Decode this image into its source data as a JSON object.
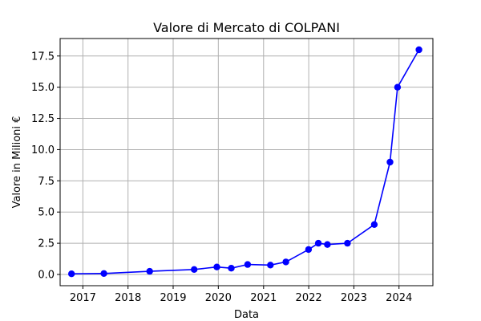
{
  "chart_data": {
    "type": "line",
    "title": "Valore di Mercato di COLPANI",
    "xlabel": "Data",
    "ylabel": "Valore in Milioni €",
    "x_axis_type": "date",
    "xlim": [
      "2016-07-01",
      "2024-10-01"
    ],
    "ylim": [
      -0.9,
      18.9
    ],
    "grid": true,
    "line_color": "#0000ff",
    "marker": "circle",
    "x_ticks": [
      {
        "date": "2017-01-01",
        "label": "2017"
      },
      {
        "date": "2018-01-01",
        "label": "2018"
      },
      {
        "date": "2019-01-01",
        "label": "2019"
      },
      {
        "date": "2020-01-01",
        "label": "2020"
      },
      {
        "date": "2021-01-01",
        "label": "2021"
      },
      {
        "date": "2022-01-01",
        "label": "2022"
      },
      {
        "date": "2023-01-01",
        "label": "2023"
      },
      {
        "date": "2024-01-01",
        "label": "2024"
      }
    ],
    "y_ticks": [
      {
        "value": 0.0,
        "label": "0.0"
      },
      {
        "value": 2.5,
        "label": "2.5"
      },
      {
        "value": 5.0,
        "label": "5.0"
      },
      {
        "value": 7.5,
        "label": "7.5"
      },
      {
        "value": 10.0,
        "label": "10.0"
      },
      {
        "value": 12.5,
        "label": "12.5"
      },
      {
        "value": 15.0,
        "label": "15.0"
      },
      {
        "value": 17.5,
        "label": "17.5"
      }
    ],
    "points": [
      {
        "x": "2016-10-01",
        "y": 0.05
      },
      {
        "x": "2017-06-20",
        "y": 0.08
      },
      {
        "x": "2018-06-25",
        "y": 0.25
      },
      {
        "x": "2019-06-20",
        "y": 0.4
      },
      {
        "x": "2019-12-20",
        "y": 0.6
      },
      {
        "x": "2020-04-15",
        "y": 0.5
      },
      {
        "x": "2020-08-25",
        "y": 0.8
      },
      {
        "x": "2021-02-25",
        "y": 0.75
      },
      {
        "x": "2021-06-30",
        "y": 1.0
      },
      {
        "x": "2021-12-31",
        "y": 2.0
      },
      {
        "x": "2022-03-20",
        "y": 2.5
      },
      {
        "x": "2022-06-01",
        "y": 2.4
      },
      {
        "x": "2022-11-10",
        "y": 2.5
      },
      {
        "x": "2023-06-15",
        "y": 4.0
      },
      {
        "x": "2023-10-20",
        "y": 9.0
      },
      {
        "x": "2023-12-20",
        "y": 15.0
      },
      {
        "x": "2024-06-10",
        "y": 18.0
      }
    ]
  }
}
